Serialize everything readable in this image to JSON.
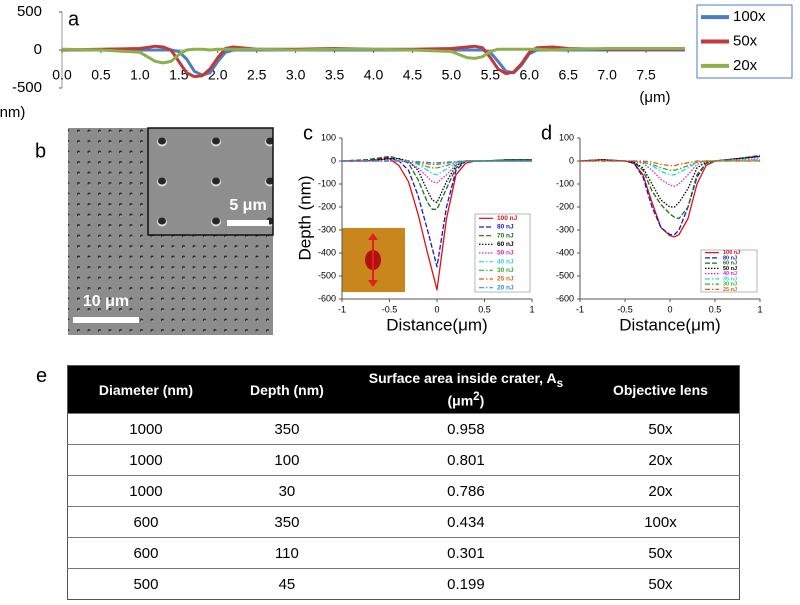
{
  "figure": {
    "panel_labels": [
      "a",
      "b",
      "c",
      "d",
      "e"
    ],
    "scale_bars": [
      "5 μm",
      "10 μm"
    ]
  },
  "chart_data": [
    {
      "type": "line",
      "xlabel": "(μm)",
      "ylabel": "(nm)",
      "legend": "right",
      "x": [
        0,
        0.5,
        1.0,
        1.2,
        1.3,
        1.4,
        1.5,
        1.6,
        1.7,
        1.8,
        1.9,
        2.0,
        2.1,
        2.2,
        2.5,
        3,
        3.5,
        4,
        4.5,
        5,
        5.2,
        5.3,
        5.4,
        5.5,
        5.6,
        5.7,
        5.8,
        5.9,
        6.0,
        6.1,
        6.3,
        6.5,
        7,
        7.5,
        8
      ],
      "xlim": [
        0,
        8
      ],
      "ylim": [
        -500,
        500
      ],
      "xticks": [
        {
          "value": 0,
          "label": "0.0"
        },
        0.5,
        {
          "value": 1,
          "label": "1.0"
        },
        1.5,
        {
          "value": 2,
          "label": "2.0"
        },
        2.5,
        {
          "value": 3,
          "label": "3.0"
        },
        3.5,
        {
          "value": 4,
          "label": "4.0"
        },
        4.5,
        {
          "value": 5,
          "label": "5.0"
        },
        5.5,
        {
          "value": 6,
          "label": "6.0"
        },
        6.5,
        {
          "value": 7,
          "label": "7.0"
        },
        7.5
      ],
      "yticks": [
        500,
        0,
        -500
      ],
      "series": [
        {
          "name": "100x",
          "color": "#4a7fc1",
          "style": "solid",
          "values": [
            0,
            0,
            0,
            0,
            0,
            0,
            -20,
            -120,
            -280,
            -330,
            -300,
            -150,
            -30,
            0,
            0,
            0,
            0,
            0,
            0,
            0,
            0,
            0,
            0,
            -30,
            -150,
            -280,
            -300,
            -200,
            -50,
            0,
            0,
            0,
            0,
            0,
            0
          ]
        },
        {
          "name": "50x",
          "color": "#c0393b",
          "style": "solid",
          "values": [
            0,
            10,
            20,
            50,
            40,
            0,
            -150,
            -300,
            -350,
            -340,
            -250,
            -100,
            20,
            40,
            10,
            10,
            20,
            10,
            10,
            20,
            40,
            50,
            30,
            -100,
            -250,
            -310,
            -290,
            -180,
            -30,
            30,
            40,
            20,
            10,
            10,
            10
          ]
        },
        {
          "name": "20x",
          "color": "#8db04a",
          "style": "solid",
          "values": [
            10,
            0,
            -30,
            -150,
            -170,
            -150,
            -60,
            0,
            10,
            10,
            0,
            10,
            10,
            10,
            10,
            0,
            10,
            10,
            0,
            -20,
            -100,
            -110,
            -90,
            -20,
            10,
            10,
            10,
            10,
            10,
            10,
            0,
            10,
            20,
            20,
            20
          ]
        }
      ]
    },
    {
      "type": "line",
      "xlabel": "Distance(μm)",
      "ylabel": "Depth (nm)",
      "legend": "lower-right",
      "x": [
        -1,
        -0.75,
        -0.5,
        -0.4,
        -0.3,
        -0.2,
        -0.1,
        -0.05,
        0,
        0.1,
        0.2,
        0.3,
        0.4,
        0.5,
        0.75,
        1
      ],
      "xlim": [
        -1,
        1
      ],
      "ylim": [
        -600,
        100
      ],
      "xticks": [
        -1,
        -0.5,
        0,
        0.5,
        1
      ],
      "yticks": [
        100,
        0,
        -100,
        -200,
        -300,
        -400,
        -500,
        -600
      ],
      "series": [
        {
          "name": "100 nJ",
          "color": "#e01010",
          "style": "solid",
          "values": [
            0,
            0,
            10,
            -20,
            -90,
            -230,
            -400,
            -480,
            -560,
            -250,
            -60,
            -10,
            0,
            0,
            5,
            5
          ]
        },
        {
          "name": "80 nJ",
          "color": "#1a1ac0",
          "style": "dashed",
          "values": [
            0,
            5,
            15,
            0,
            -40,
            -150,
            -300,
            -380,
            -460,
            -200,
            -40,
            0,
            0,
            0,
            5,
            5
          ]
        },
        {
          "name": "70 nJ",
          "color": "#1f6e1f",
          "style": "dashed",
          "values": [
            0,
            5,
            20,
            10,
            -10,
            -80,
            -180,
            -210,
            -210,
            -120,
            -30,
            0,
            0,
            0,
            5,
            5
          ]
        },
        {
          "name": "60 nJ",
          "color": "#000000",
          "style": "dotted",
          "values": [
            0,
            0,
            10,
            10,
            0,
            -40,
            -130,
            -170,
            -180,
            -90,
            -20,
            0,
            0,
            0,
            0,
            0
          ]
        },
        {
          "name": "50 nJ",
          "color": "#e020d0",
          "style": "dotted",
          "values": [
            0,
            0,
            0,
            0,
            -5,
            -30,
            -70,
            -90,
            -95,
            -60,
            -15,
            0,
            0,
            0,
            0,
            0
          ]
        },
        {
          "name": "40 nJ",
          "color": "#30d0e0",
          "style": "dashdot",
          "values": [
            0,
            0,
            0,
            0,
            0,
            -15,
            -40,
            -55,
            -60,
            -35,
            -10,
            0,
            0,
            0,
            0,
            0
          ]
        },
        {
          "name": "30 nJ",
          "color": "#30b030",
          "style": "dashdot",
          "values": [
            0,
            0,
            0,
            0,
            0,
            -10,
            -25,
            -30,
            -30,
            -20,
            -5,
            0,
            0,
            0,
            0,
            0
          ]
        },
        {
          "name": "25 nJ",
          "color": "#e06010",
          "style": "dashdot",
          "values": [
            0,
            0,
            0,
            0,
            0,
            -5,
            -12,
            -15,
            -15,
            -10,
            -3,
            0,
            0,
            0,
            0,
            0
          ]
        },
        {
          "name": "20 nJ",
          "color": "#3090e0",
          "style": "dashdot",
          "values": [
            0,
            0,
            0,
            0,
            0,
            -3,
            -6,
            -8,
            -8,
            -5,
            -2,
            0,
            0,
            0,
            0,
            0
          ]
        }
      ]
    },
    {
      "type": "line",
      "xlabel": "Distance(μm)",
      "legend": "lower-right",
      "x": [
        -1,
        -0.75,
        -0.5,
        -0.4,
        -0.3,
        -0.2,
        -0.1,
        0,
        0.05,
        0.1,
        0.2,
        0.3,
        0.4,
        0.5,
        0.75,
        1
      ],
      "xlim": [
        -1,
        1
      ],
      "ylim": [
        -600,
        100
      ],
      "xticks": [
        -1,
        -0.5,
        0,
        0.5,
        1
      ],
      "yticks": [
        100,
        0,
        -100,
        -200,
        -300,
        -400,
        -500,
        -600
      ],
      "series": [
        {
          "name": "100 nJ",
          "color": "#e01010",
          "style": "solid",
          "values": [
            0,
            5,
            0,
            -10,
            -60,
            -180,
            -290,
            -325,
            -330,
            -320,
            -250,
            -100,
            -20,
            0,
            10,
            20
          ]
        },
        {
          "name": "80 nJ",
          "color": "#1a1ac0",
          "style": "dashed",
          "values": [
            0,
            5,
            0,
            -10,
            -70,
            -200,
            -290,
            -320,
            -320,
            -300,
            -200,
            -70,
            -10,
            0,
            10,
            20
          ]
        },
        {
          "name": "60 nJ",
          "color": "#1f6e1f",
          "style": "dashed",
          "values": [
            0,
            5,
            0,
            -5,
            -40,
            -130,
            -190,
            -230,
            -245,
            -250,
            -200,
            -60,
            -10,
            0,
            10,
            25
          ]
        },
        {
          "name": "50 nJ",
          "color": "#000000",
          "style": "dotted",
          "values": [
            0,
            5,
            0,
            -5,
            -30,
            -100,
            -170,
            -200,
            -200,
            -180,
            -120,
            -30,
            -5,
            0,
            10,
            20
          ]
        },
        {
          "name": "40 nJ",
          "color": "#e020d0",
          "style": "dotted",
          "values": [
            0,
            0,
            0,
            0,
            -10,
            -40,
            -80,
            -105,
            -110,
            -100,
            -60,
            -15,
            0,
            0,
            5,
            10
          ]
        },
        {
          "name": "35 nJ",
          "color": "#30d0e0",
          "style": "dashdot",
          "values": [
            0,
            0,
            0,
            0,
            -5,
            -20,
            -45,
            -60,
            -60,
            -50,
            -30,
            -5,
            0,
            0,
            5,
            5
          ]
        },
        {
          "name": "30 nJ",
          "color": "#30b030",
          "style": "dashdot",
          "values": [
            0,
            0,
            0,
            0,
            -5,
            -15,
            -30,
            -40,
            -40,
            -35,
            -20,
            -5,
            0,
            0,
            0,
            0
          ]
        },
        {
          "name": "25 nJ",
          "color": "#e06010",
          "style": "dashdot",
          "values": [
            0,
            0,
            0,
            0,
            0,
            -5,
            -15,
            -20,
            -20,
            -15,
            -8,
            0,
            0,
            0,
            0,
            0
          ]
        }
      ]
    }
  ],
  "table": {
    "header": [
      "Diameter (nm)",
      "Depth (nm)",
      {
        "text": "Surface area  inside crater, A",
        "sub": "s",
        "unit": " (μm",
        "sup": "2",
        "close": ")"
      },
      "Objective lens"
    ],
    "rows": [
      [
        1000,
        350,
        0.958,
        "50x"
      ],
      [
        1000,
        100,
        0.801,
        "20x"
      ],
      [
        1000,
        30,
        0.786,
        "20x"
      ],
      [
        600,
        350,
        0.434,
        "100x"
      ],
      [
        600,
        110,
        0.301,
        "50x"
      ],
      [
        500,
        45,
        0.199,
        "50x"
      ]
    ]
  }
}
